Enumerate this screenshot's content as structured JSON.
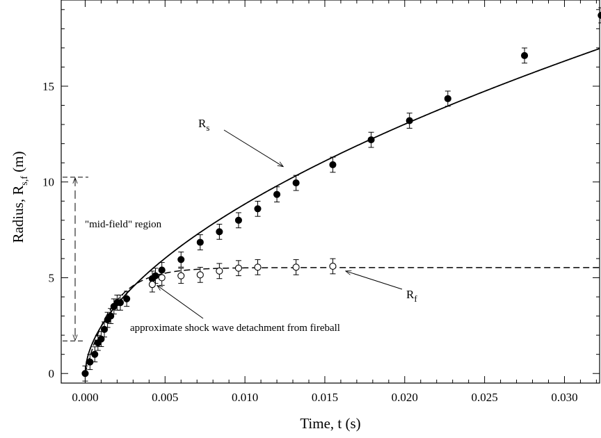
{
  "chart_data": {
    "type": "scatter",
    "title": "",
    "xlabel": "Time, t (s)",
    "ylabel_main": "Radius, R",
    "ylabel_sub": "s,f",
    "ylabel_unit": " (m)",
    "xlim": [
      -0.0015,
      0.0322
    ],
    "ylim": [
      -0.5,
      19.5
    ],
    "x_ticks": [
      0.0,
      0.005,
      0.01,
      0.015,
      0.02,
      0.025,
      0.03
    ],
    "x_tick_labels": [
      "0.000",
      "0.005",
      "0.010",
      "0.015",
      "0.020",
      "0.025",
      "0.030"
    ],
    "y_ticks": [
      0,
      5,
      10,
      15
    ],
    "y_tick_labels": [
      "0",
      "5",
      "10",
      "15"
    ],
    "grid": false,
    "series": [
      {
        "name": "R_s",
        "label_main": "R",
        "label_sub": "s",
        "marker": "filled-circle",
        "x": [
          0.0,
          0.0003,
          0.0006,
          0.0008,
          0.001,
          0.0012,
          0.0014,
          0.0016,
          0.0018,
          0.002,
          0.0022,
          0.0026,
          0.0042,
          0.0044,
          0.0048,
          0.006,
          0.0072,
          0.0084,
          0.0096,
          0.0108,
          0.012,
          0.0132,
          0.0155,
          0.0179,
          0.0203,
          0.0227,
          0.0275,
          0.0323
        ],
        "y": [
          0.0,
          0.6,
          1.0,
          1.6,
          1.8,
          2.3,
          2.8,
          3.0,
          3.5,
          3.7,
          3.7,
          3.9,
          4.95,
          5.1,
          5.4,
          5.95,
          6.85,
          7.4,
          8.0,
          8.6,
          9.35,
          9.95,
          10.9,
          12.2,
          13.2,
          14.35,
          16.6,
          18.7
        ],
        "error": 0.25
      },
      {
        "name": "R_f",
        "label_main": "R",
        "label_sub": "f",
        "marker": "open-circle",
        "x": [
          0.0042,
          0.0048,
          0.006,
          0.0072,
          0.0084,
          0.0096,
          0.0108,
          0.0132,
          0.0155
        ],
        "y": [
          4.65,
          5.0,
          5.1,
          5.15,
          5.35,
          5.5,
          5.55,
          5.55,
          5.6
        ],
        "error": 0.25
      }
    ],
    "fits": [
      {
        "series": "R_s",
        "style": "solid",
        "law": "power",
        "a": 114.83,
        "b": 0.5566,
        "x_range": [
          0.0,
          0.0322
        ]
      },
      {
        "series": "R_f",
        "style": "dashed",
        "law": "saturating-exponential",
        "plateau": 5.53,
        "tau": 0.0017,
        "x_range": [
          0.0,
          0.0322
        ]
      }
    ],
    "annotations": {
      "mid_field": "\"mid-field\" region",
      "mid_field_range": [
        1.7,
        10.25
      ],
      "detachment": "approximate shock wave detachment from fireball"
    }
  }
}
